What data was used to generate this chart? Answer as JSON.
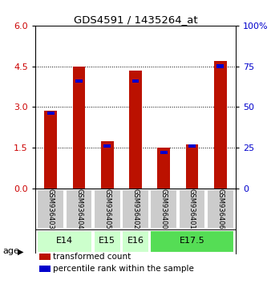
{
  "title": "GDS4591 / 1435264_at",
  "samples": [
    "GSM936403",
    "GSM936404",
    "GSM936405",
    "GSM936402",
    "GSM936400",
    "GSM936401",
    "GSM936406"
  ],
  "red_values": [
    2.85,
    4.5,
    1.72,
    4.35,
    1.5,
    1.62,
    4.7
  ],
  "blue_percentile": [
    46,
    66,
    26,
    66,
    22,
    26,
    75
  ],
  "ylim_left": [
    0,
    6
  ],
  "ylim_right": [
    0,
    100
  ],
  "yticks_left": [
    0,
    1.5,
    3,
    4.5,
    6
  ],
  "yticks_right": [
    0,
    25,
    50,
    75,
    100
  ],
  "left_color": "#cc0000",
  "right_color": "#0000cc",
  "bar_red": "#bb1100",
  "bar_blue": "#0000cc",
  "age_groups": [
    {
      "label": "E14",
      "start": 0,
      "end": 2,
      "color": "#ccffcc"
    },
    {
      "label": "E15",
      "start": 2,
      "end": 3,
      "color": "#ccffcc"
    },
    {
      "label": "E16",
      "start": 3,
      "end": 4,
      "color": "#ccffcc"
    },
    {
      "label": "E17.5",
      "start": 4,
      "end": 7,
      "color": "#55dd55"
    }
  ],
  "age_label": "age",
  "legend_items": [
    "transformed count",
    "percentile rank within the sample"
  ],
  "legend_colors": [
    "#bb1100",
    "#0000cc"
  ],
  "bar_width": 0.45,
  "sample_area_color": "#cccccc"
}
